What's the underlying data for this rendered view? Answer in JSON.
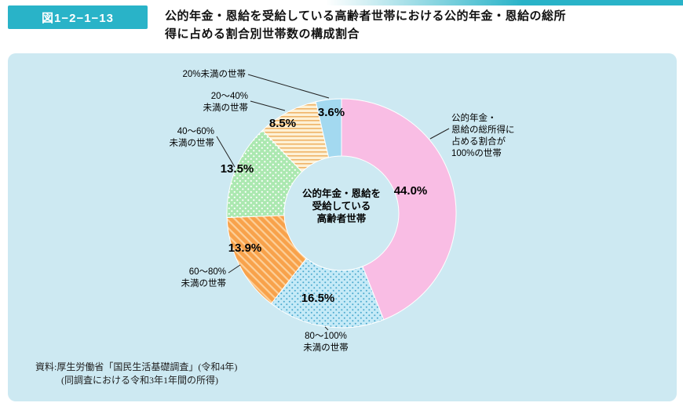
{
  "header": {
    "figure_label": "図1−2−1−13",
    "title_lines": [
      "公的年金・恩給を受給している高齢者世帯における公的年金・恩給の総所",
      "得に占める割合別世帯数の構成割合"
    ],
    "accent_color": "#29b3c8"
  },
  "panel": {
    "background": "#cde9f2",
    "center_label_lines": [
      "公的年金・恩給を",
      "受給している",
      "高齢者世帯"
    ],
    "source_lines": [
      "資料:厚生労働省「国民生活基礎調査」(令和4年)",
      "(同調査における令和3年1年間の所得)"
    ]
  },
  "chart_data": {
    "type": "pie",
    "subtype": "donut",
    "title": "公的年金・恩給を受給している高齢者世帯における公的年金・恩給の総所得に占める割合別世帯数の構成割合",
    "center_label": "公的年金・恩給を受給している高齢者世帯",
    "start_angle_deg": 0,
    "direction": "clockwise",
    "unit": "%",
    "legend_position": "none",
    "slices": [
      {
        "label": "公的年金・恩給の総所得に占める割合が100%の世帯",
        "label_lines": [
          "公的年金・",
          "恩給の総所得に",
          "占める割合が",
          "100%の世帯"
        ],
        "value": 44.0,
        "value_label": "44.0%",
        "color": "#f9bde4",
        "pattern": "solid"
      },
      {
        "label": "80〜100%未満の世帯",
        "label_lines": [
          "80〜100%",
          "未満の世帯"
        ],
        "value": 16.5,
        "value_label": "16.5%",
        "color": "#c5eaf7",
        "pattern": "dots-blue"
      },
      {
        "label": "60〜80%未満の世帯",
        "label_lines": [
          "60〜80%",
          "未満の世帯"
        ],
        "value": 13.9,
        "value_label": "13.9%",
        "color": "#f8a24b",
        "pattern": "stripes-diag"
      },
      {
        "label": "40〜60%未満の世帯",
        "label_lines": [
          "40〜60%",
          "未満の世帯"
        ],
        "value": 13.5,
        "value_label": "13.5%",
        "color": "#abe8b0",
        "pattern": "dots-green"
      },
      {
        "label": "20〜40%未満の世帯",
        "label_lines": [
          "20〜40%",
          "未満の世帯"
        ],
        "value": 8.5,
        "value_label": "8.5%",
        "color": "#fdf1d6",
        "pattern": "stripes-horiz"
      },
      {
        "label": "20%未満の世帯",
        "label_lines": [
          "20%未満の世帯"
        ],
        "value": 3.6,
        "value_label": "3.6%",
        "color": "#a3d9f0",
        "pattern": "solid"
      }
    ]
  }
}
